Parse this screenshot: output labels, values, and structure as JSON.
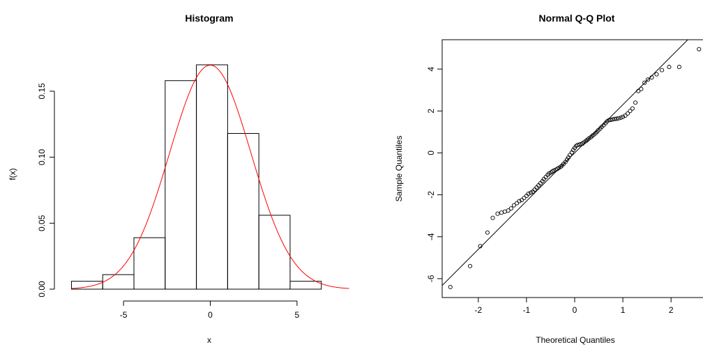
{
  "chart_data": [
    {
      "type": "histogram",
      "title": "Histogram",
      "xlabel": "x",
      "ylabel": "f(x)",
      "xlim": [
        -8.3,
        8.3
      ],
      "ylim": [
        0,
        0.17
      ],
      "xticks": [
        -5,
        0,
        5
      ],
      "xtick_labels": [
        "-5",
        "0",
        "5"
      ],
      "yticks": [
        0.0,
        0.05,
        0.1,
        0.15
      ],
      "ytick_labels": [
        "0.00",
        "0.05",
        "0.10",
        "0.15"
      ],
      "bins": [
        {
          "x0": -8.0,
          "x1": -6.2,
          "density": 0.006
        },
        {
          "x0": -6.2,
          "x1": -4.4,
          "density": 0.011
        },
        {
          "x0": -4.4,
          "x1": -2.6,
          "density": 0.039
        },
        {
          "x0": -2.6,
          "x1": -0.8,
          "density": 0.158
        },
        {
          "x0": -0.8,
          "x1": 1.0,
          "density": 0.17
        },
        {
          "x0": 1.0,
          "x1": 2.8,
          "density": 0.118
        },
        {
          "x0": 2.8,
          "x1": 4.6,
          "density": 0.056
        },
        {
          "x0": 4.6,
          "x1": 6.4,
          "density": 0.006
        }
      ],
      "curve": {
        "type": "normal-density",
        "mean": 0,
        "sd": 2.35,
        "color": "#ff0000"
      },
      "grid": false
    },
    {
      "type": "scatter",
      "title": "Normal Q-Q Plot",
      "xlabel": "Theoretical Quantiles",
      "ylabel": "Sample Quantiles",
      "xlim": [
        -2.75,
        2.75
      ],
      "ylim": [
        -6.9,
        5.4
      ],
      "xticks": [
        -2,
        -1,
        0,
        1,
        2
      ],
      "xtick_labels": [
        "-2",
        "-1",
        "0",
        "1",
        "2"
      ],
      "yticks": [
        -6,
        -4,
        -2,
        0,
        2,
        4
      ],
      "ytick_labels": [
        "-6",
        "-4",
        "-2",
        "0",
        "2",
        "4"
      ],
      "reference_line": {
        "intercept": 0.0,
        "slope": 2.3
      },
      "points": [
        [
          -2.58,
          -6.4
        ],
        [
          -2.17,
          -5.4
        ],
        [
          -1.96,
          -4.45
        ],
        [
          -1.81,
          -3.8
        ],
        [
          -1.7,
          -3.1
        ],
        [
          -1.6,
          -2.9
        ],
        [
          -1.52,
          -2.85
        ],
        [
          -1.45,
          -2.8
        ],
        [
          -1.38,
          -2.75
        ],
        [
          -1.32,
          -2.65
        ],
        [
          -1.26,
          -2.5
        ],
        [
          -1.2,
          -2.4
        ],
        [
          -1.15,
          -2.3
        ],
        [
          -1.1,
          -2.25
        ],
        [
          -1.05,
          -2.15
        ],
        [
          -1.0,
          -2.05
        ],
        [
          -0.96,
          -1.95
        ],
        [
          -0.91,
          -1.9
        ],
        [
          -0.87,
          -1.85
        ],
        [
          -0.83,
          -1.75
        ],
        [
          -0.79,
          -1.65
        ],
        [
          -0.75,
          -1.55
        ],
        [
          -0.71,
          -1.45
        ],
        [
          -0.67,
          -1.35
        ],
        [
          -0.64,
          -1.25
        ],
        [
          -0.6,
          -1.15
        ],
        [
          -0.56,
          -1.05
        ],
        [
          -0.53,
          -0.98
        ],
        [
          -0.49,
          -0.93
        ],
        [
          -0.46,
          -0.88
        ],
        [
          -0.43,
          -0.84
        ],
        [
          -0.39,
          -0.8
        ],
        [
          -0.36,
          -0.76
        ],
        [
          -0.33,
          -0.72
        ],
        [
          -0.29,
          -0.66
        ],
        [
          -0.26,
          -0.6
        ],
        [
          -0.23,
          -0.52
        ],
        [
          -0.19,
          -0.43
        ],
        [
          -0.16,
          -0.32
        ],
        [
          -0.13,
          -0.22
        ],
        [
          -0.1,
          -0.1
        ],
        [
          -0.06,
          0.02
        ],
        [
          -0.03,
          0.14
        ],
        [
          0.0,
          0.24
        ],
        [
          0.03,
          0.33
        ],
        [
          0.06,
          0.38
        ],
        [
          0.1,
          0.4
        ],
        [
          0.13,
          0.42
        ],
        [
          0.16,
          0.44
        ],
        [
          0.19,
          0.5
        ],
        [
          0.23,
          0.56
        ],
        [
          0.26,
          0.62
        ],
        [
          0.29,
          0.68
        ],
        [
          0.33,
          0.74
        ],
        [
          0.36,
          0.8
        ],
        [
          0.39,
          0.86
        ],
        [
          0.43,
          0.93
        ],
        [
          0.46,
          1.0
        ],
        [
          0.49,
          1.08
        ],
        [
          0.53,
          1.16
        ],
        [
          0.56,
          1.24
        ],
        [
          0.6,
          1.32
        ],
        [
          0.64,
          1.42
        ],
        [
          0.67,
          1.5
        ],
        [
          0.71,
          1.56
        ],
        [
          0.75,
          1.58
        ],
        [
          0.79,
          1.6
        ],
        [
          0.83,
          1.62
        ],
        [
          0.87,
          1.63
        ],
        [
          0.91,
          1.65
        ],
        [
          0.96,
          1.68
        ],
        [
          1.0,
          1.72
        ],
        [
          1.05,
          1.78
        ],
        [
          1.1,
          1.88
        ],
        [
          1.15,
          2.0
        ],
        [
          1.2,
          2.12
        ],
        [
          1.26,
          2.4
        ],
        [
          1.32,
          2.95
        ],
        [
          1.38,
          3.05
        ],
        [
          1.45,
          3.35
        ],
        [
          1.52,
          3.5
        ],
        [
          1.6,
          3.6
        ],
        [
          1.7,
          3.75
        ],
        [
          1.81,
          3.95
        ],
        [
          1.96,
          4.1
        ],
        [
          2.17,
          4.1
        ],
        [
          2.58,
          4.95
        ]
      ],
      "grid": false
    }
  ]
}
